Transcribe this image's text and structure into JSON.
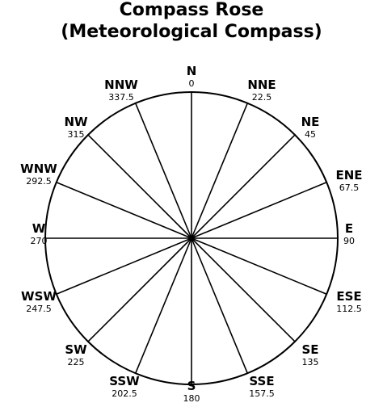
{
  "title": {
    "line1": "Compass Rose",
    "line2": "(Meteorological Compass)"
  },
  "directions": [
    {
      "name": "N",
      "degrees": "0",
      "angle": 0
    },
    {
      "name": "NNE",
      "degrees": "22.5",
      "angle": 22.5
    },
    {
      "name": "NE",
      "degrees": "45",
      "angle": 45
    },
    {
      "name": "ENE",
      "degrees": "67.5",
      "angle": 67.5
    },
    {
      "name": "E",
      "degrees": "90",
      "angle": 90
    },
    {
      "name": "ESE",
      "degrees": "112.5",
      "angle": 112.5
    },
    {
      "name": "SE",
      "degrees": "135",
      "angle": 135
    },
    {
      "name": "SSE",
      "degrees": "157.5",
      "angle": 157.5
    },
    {
      "name": "S",
      "degrees": "180",
      "angle": 180
    },
    {
      "name": "SSW",
      "degrees": "202.5",
      "angle": 202.5
    },
    {
      "name": "SW",
      "degrees": "225",
      "angle": 225
    },
    {
      "name": "WSW",
      "degrees": "247.5",
      "angle": 247.5
    },
    {
      "name": "W",
      "degrees": "270",
      "angle": 270
    },
    {
      "name": "WNW",
      "degrees": "292.5",
      "angle": 292.5
    },
    {
      "name": "NW",
      "degrees": "315",
      "angle": 315
    },
    {
      "name": "NNW",
      "degrees": "337.5",
      "angle": 337.5
    }
  ],
  "colors": {
    "stroke": "#000000",
    "background": "#ffffff"
  }
}
